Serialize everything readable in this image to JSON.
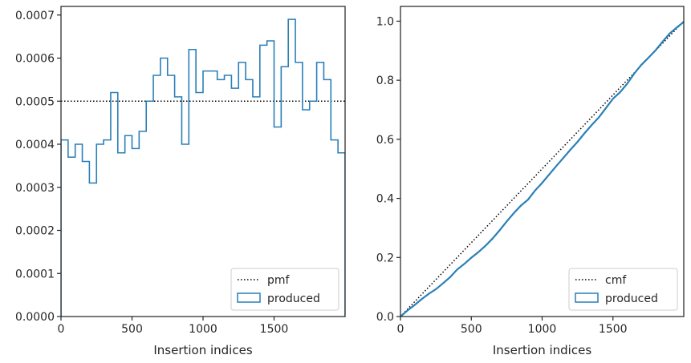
{
  "chart_data": [
    {
      "type": "step",
      "title": "",
      "xlabel": "Insertion indices",
      "ylabel": "",
      "xlim": [
        0,
        2000
      ],
      "ylim": [
        0,
        0.00072
      ],
      "xticks": [
        0,
        500,
        1000,
        1500
      ],
      "xtick_labels": [
        "0",
        "500",
        "1000",
        "1500"
      ],
      "yticks": [
        0,
        0.0001,
        0.0002,
        0.0003,
        0.0004,
        0.0005,
        0.0006,
        0.0007
      ],
      "ytick_labels": [
        "0.0000",
        "0.0001",
        "0.0002",
        "0.0003",
        "0.0004",
        "0.0005",
        "0.0006",
        "0.0007"
      ],
      "legend_position": "lower-right",
      "series": [
        {
          "name": "pmf",
          "style": "dotted",
          "color": "#000000",
          "value": 0.0005
        },
        {
          "name": "produced",
          "style": "step",
          "color": "#2a7fb8",
          "bin_width": 50,
          "values": [
            0.00041,
            0.00037,
            0.0004,
            0.00036,
            0.00031,
            0.0004,
            0.00041,
            0.00052,
            0.00038,
            0.00042,
            0.00039,
            0.00043,
            0.0005,
            0.00056,
            0.0006,
            0.00056,
            0.00051,
            0.0004,
            0.00062,
            0.00052,
            0.00057,
            0.00057,
            0.00055,
            0.00056,
            0.00053,
            0.00059,
            0.00055,
            0.00051,
            0.00063,
            0.00064,
            0.00044,
            0.00058,
            0.00069,
            0.00059,
            0.00048,
            0.0005,
            0.00059,
            0.00055,
            0.00041,
            0.00038
          ]
        }
      ]
    },
    {
      "type": "line",
      "title": "",
      "xlabel": "Insertion indices",
      "ylabel": "",
      "xlim": [
        0,
        2000
      ],
      "ylim": [
        0,
        1.05
      ],
      "xticks": [
        0,
        500,
        1000,
        1500
      ],
      "xtick_labels": [
        "0",
        "500",
        "1000",
        "1500"
      ],
      "yticks": [
        0,
        0.2,
        0.4,
        0.6,
        0.8,
        1.0
      ],
      "ytick_labels": [
        "0.0",
        "0.2",
        "0.4",
        "0.6",
        "0.8",
        "1.0"
      ],
      "legend_position": "lower-right",
      "series": [
        {
          "name": "cmf",
          "style": "dotted",
          "color": "#000000",
          "x": [
            0,
            2000
          ],
          "y": [
            0,
            1.0
          ]
        },
        {
          "name": "produced",
          "style": "line",
          "color": "#2a7fb8",
          "x": [
            0,
            50,
            100,
            150,
            200,
            250,
            300,
            350,
            400,
            450,
            500,
            550,
            600,
            650,
            700,
            750,
            800,
            850,
            900,
            950,
            1000,
            1050,
            1100,
            1150,
            1200,
            1250,
            1300,
            1350,
            1400,
            1450,
            1500,
            1550,
            1600,
            1650,
            1700,
            1750,
            1800,
            1850,
            1900,
            1950,
            2000
          ],
          "y": [
            0,
            0.0205,
            0.039,
            0.059,
            0.077,
            0.0925,
            0.1125,
            0.133,
            0.159,
            0.178,
            0.199,
            0.218,
            0.2395,
            0.264,
            0.292,
            0.322,
            0.35,
            0.3755,
            0.3955,
            0.4265,
            0.4525,
            0.481,
            0.5095,
            0.537,
            0.565,
            0.5915,
            0.621,
            0.6485,
            0.674,
            0.7055,
            0.7375,
            0.7595,
            0.788,
            0.8225,
            0.852,
            0.876,
            0.901,
            0.9305,
            0.958,
            0.9785,
            0.9975
          ]
        }
      ]
    }
  ]
}
